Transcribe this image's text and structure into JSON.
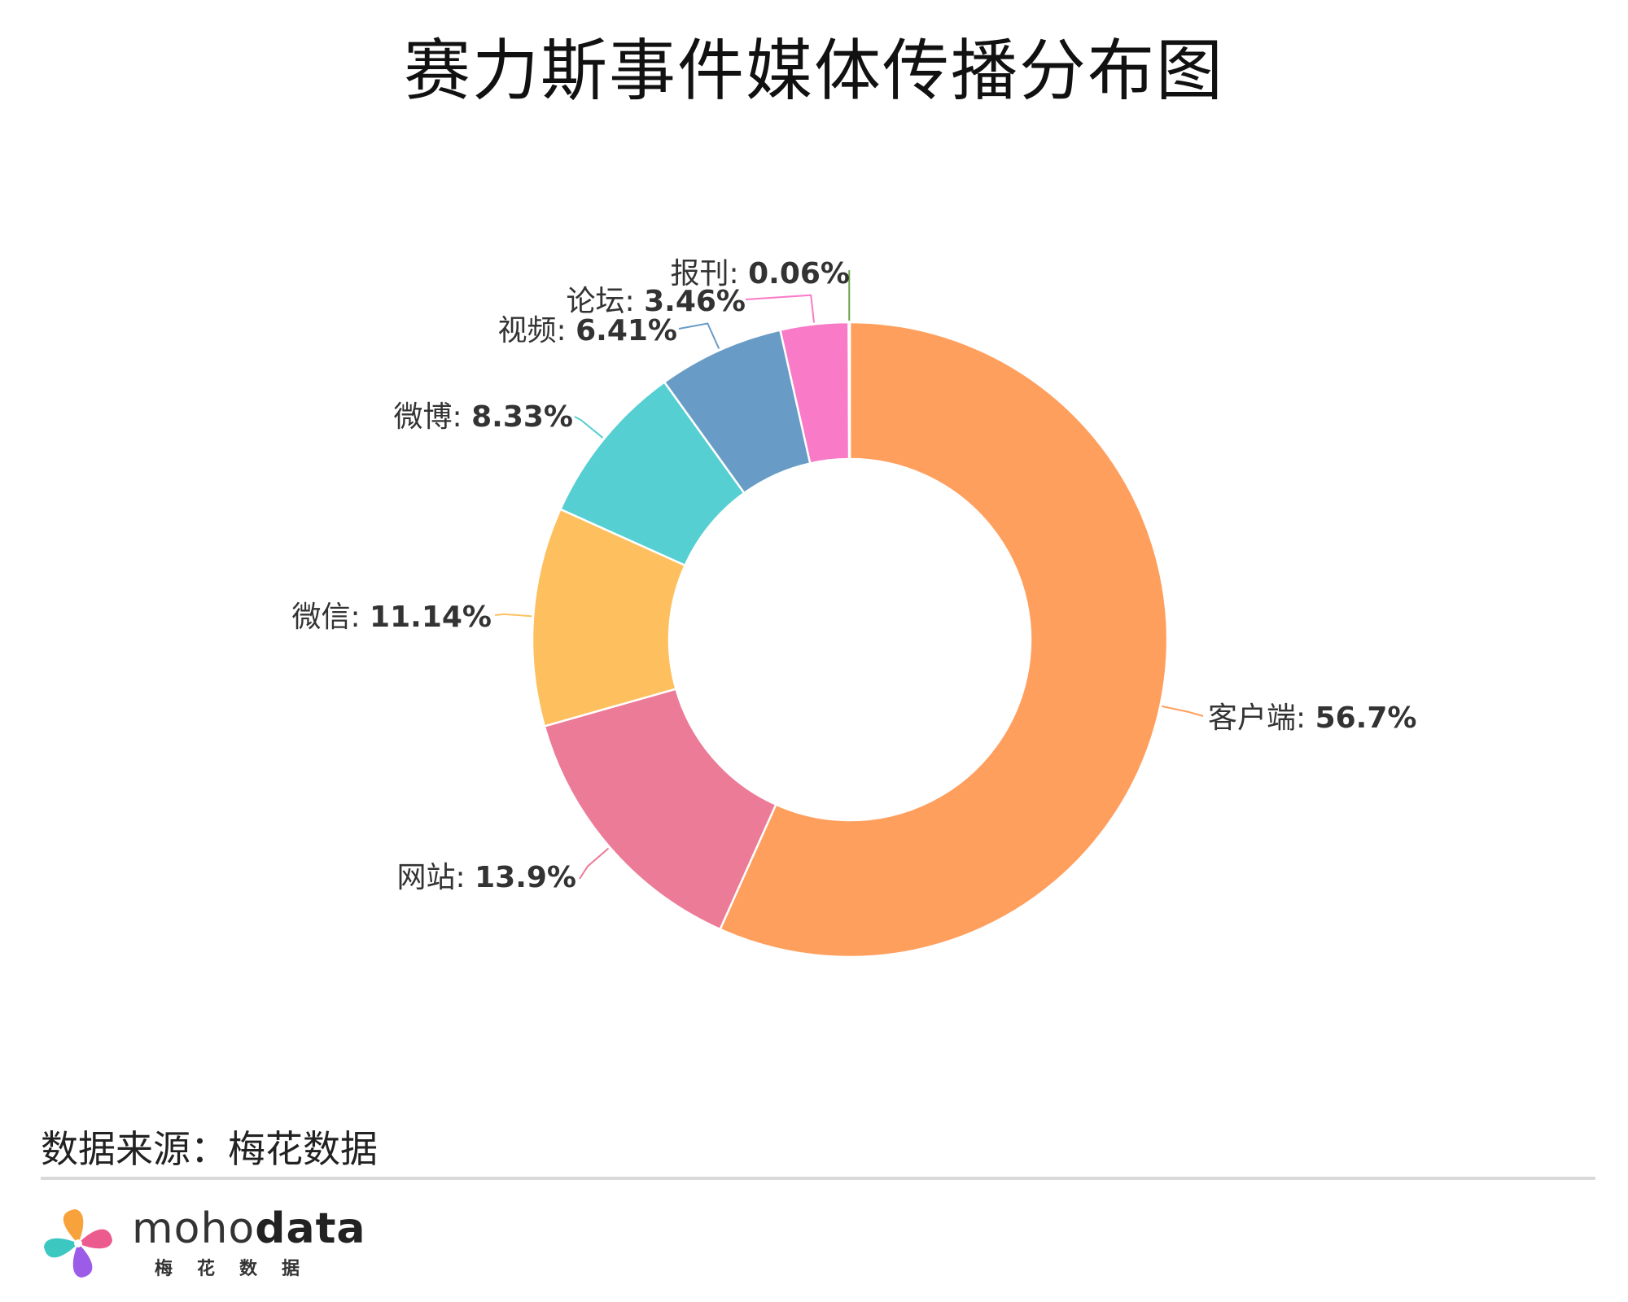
{
  "chart_data": {
    "type": "pie",
    "variant": "donut",
    "title": "赛力斯事件媒体传播分布图",
    "legend": "none",
    "slices": [
      {
        "label": "客户端",
        "value": 56.7,
        "value_text": "56.7%",
        "color": "#FF9F5E"
      },
      {
        "label": "网站",
        "value": 13.9,
        "value_text": "13.9%",
        "color": "#EC7B98"
      },
      {
        "label": "微信",
        "value": 11.14,
        "value_text": "11.14%",
        "color": "#FEC05E"
      },
      {
        "label": "微博",
        "value": 8.33,
        "value_text": "8.33%",
        "color": "#56CFD2"
      },
      {
        "label": "视频",
        "value": 6.41,
        "value_text": "6.41%",
        "color": "#689CC6"
      },
      {
        "label": "论坛",
        "value": 3.46,
        "value_text": "3.46%",
        "color": "#F97AC7"
      },
      {
        "label": "报刊",
        "value": 0.06,
        "value_text": "0.06%",
        "color": "#6BA34A"
      }
    ]
  },
  "footer": {
    "source": "数据来源：梅花数据",
    "brand_light": "moho",
    "brand_bold": "data",
    "brand_sub": "梅花数据"
  },
  "colors": {
    "divider": "#d9d9d9",
    "logo_petals": [
      "#F7A23B",
      "#EC5B8E",
      "#9D5CE8",
      "#3CC7C1"
    ]
  }
}
